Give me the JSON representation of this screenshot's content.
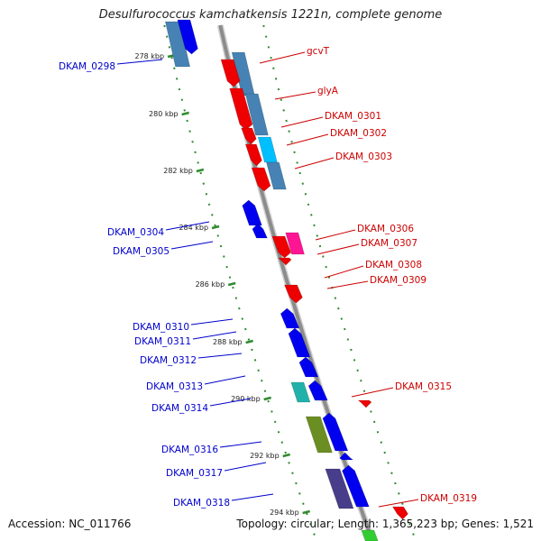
{
  "title": "Desulfurococcus kamchatkensis 1221n, complete genome",
  "footer": {
    "accession": "Accession: NC_011766",
    "summary": "Topology: circular; Length: 1,365,223 bp; Genes: 1,521"
  },
  "scale": {
    "unit": "kbp",
    "ticks": [
      "278 kbp",
      "280 kbp",
      "282 kbp",
      "284 kbp",
      "286 kbp",
      "288 kbp",
      "290 kbp",
      "292 kbp",
      "294 kbp"
    ]
  },
  "colors": {
    "backbone": "#8c8c8c",
    "forward_label": "#cc0000",
    "reverse_label": "#0000cc",
    "tick": "#2e8b2e"
  },
  "features": {
    "forward_strand": [
      "gcvT",
      "glyA",
      "DKAM_0301",
      "DKAM_0302",
      "DKAM_0303",
      "DKAM_0306",
      "DKAM_0307",
      "DKAM_0308",
      "DKAM_0309",
      "DKAM_0315",
      "DKAM_0319"
    ],
    "reverse_strand": [
      "DKAM_0298",
      "DKAM_0304",
      "DKAM_0305",
      "DKAM_0310",
      "DKAM_0311",
      "DKAM_0312",
      "DKAM_0313",
      "DKAM_0314",
      "DKAM_0316",
      "DKAM_0317",
      "DKAM_0318"
    ]
  }
}
